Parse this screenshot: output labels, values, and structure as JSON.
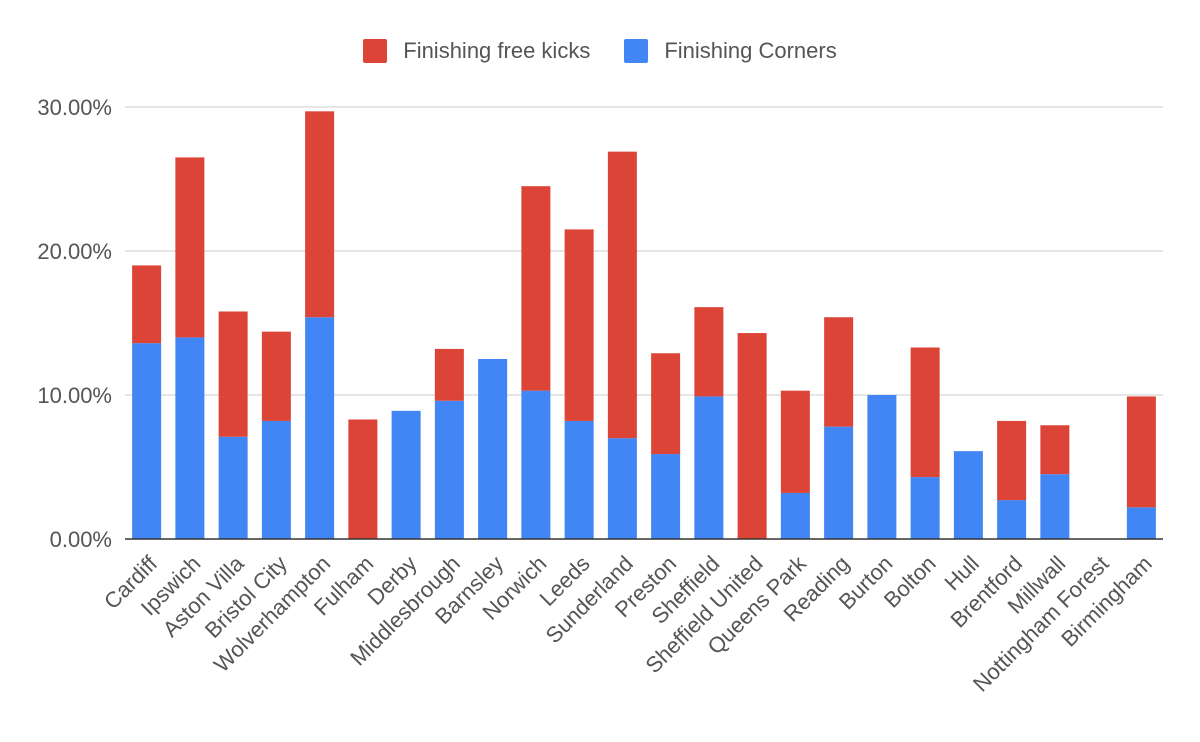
{
  "colors": {
    "free_kicks": "#db4437",
    "corners": "#4285f4",
    "grid": "#cccccc",
    "axis": "#333333",
    "text": "#555555"
  },
  "legend": {
    "free_kicks_label": "Finishing free kicks",
    "corners_label": "Finishing Corners"
  },
  "chart_data": {
    "type": "bar",
    "stacked": true,
    "categories": [
      "Cardiff",
      "Ipswich",
      "Aston Villa",
      "Bristol City",
      "Wolverhampton",
      "Fulham",
      "Derby",
      "Middlesbrough",
      "Barnsley",
      "Norwich",
      "Leeds",
      "Sunderland",
      "Preston",
      "Sheffield",
      "Sheffield United",
      "Queens Park",
      "Reading",
      "Burton",
      "Bolton",
      "Hull",
      "Brentford",
      "Millwall",
      "Nottingham Forest",
      "Birmingham"
    ],
    "series": [
      {
        "name": "Finishing Corners",
        "values": [
          13.6,
          14.0,
          7.1,
          8.2,
          15.4,
          0,
          8.9,
          9.6,
          12.5,
          10.3,
          8.2,
          7.0,
          5.9,
          9.9,
          0,
          3.2,
          7.8,
          10.0,
          4.3,
          6.1,
          2.7,
          4.5,
          0,
          2.2
        ]
      },
      {
        "name": "Finishing free kicks",
        "values": [
          5.4,
          12.5,
          8.7,
          6.2,
          14.3,
          8.3,
          0,
          3.6,
          0,
          14.2,
          13.3,
          19.9,
          7.0,
          6.2,
          14.3,
          7.1,
          7.6,
          0,
          9.0,
          0,
          5.5,
          3.4,
          0,
          7.7
        ]
      }
    ],
    "y_ticks": [
      "0.00%",
      "10.00%",
      "20.00%",
      "30.00%"
    ],
    "ylim": [
      0,
      30
    ],
    "grid": true,
    "legend_position": "top-center"
  }
}
